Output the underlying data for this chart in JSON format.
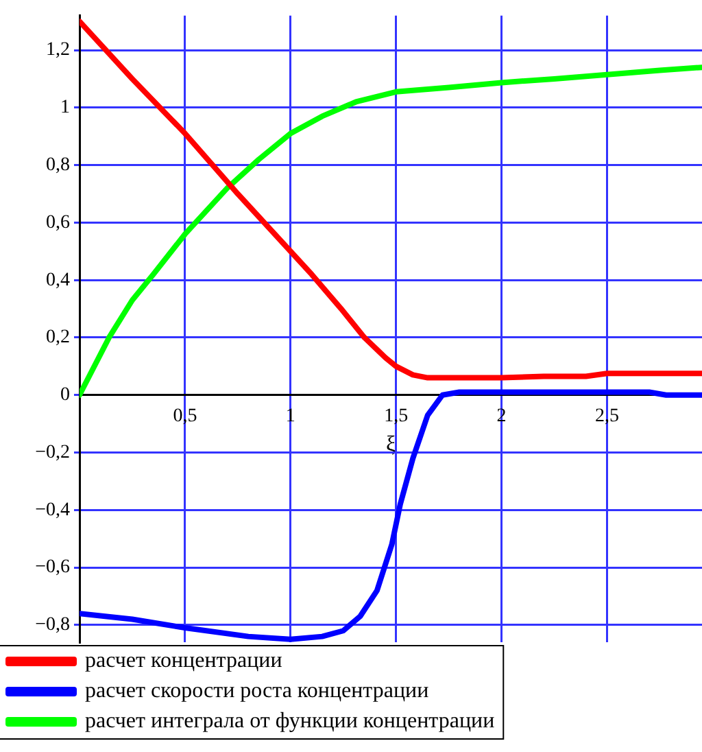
{
  "chart_data": {
    "type": "line",
    "xlabel": "ξ",
    "xlim": [
      0,
      2.95
    ],
    "ylim": [
      -0.86,
      1.32
    ],
    "xticks": [
      {
        "value": 0.5,
        "label": "0,5"
      },
      1,
      {
        "value": 1.5,
        "label": "1,5"
      },
      2,
      {
        "value": 2.5,
        "label": "2,5"
      }
    ],
    "yticks": [
      {
        "value": -0.8,
        "label": "−0,8"
      },
      {
        "value": -0.6,
        "label": "−0,6"
      },
      {
        "value": -0.4,
        "label": "−0,4"
      },
      {
        "value": -0.2,
        "label": "−0,2"
      },
      0,
      {
        "value": 0.2,
        "label": "0,2"
      },
      {
        "value": 0.4,
        "label": "0,4"
      },
      {
        "value": 0.6,
        "label": "0,6"
      },
      {
        "value": 0.8,
        "label": "0,8"
      },
      1,
      {
        "value": 1.2,
        "label": "1,2"
      }
    ],
    "grid": true,
    "legend": "bottom",
    "marker": "none",
    "line_style": "solid",
    "series": [
      {
        "name": "расчет концентрации",
        "color": "#ff0000",
        "x": [
          0,
          0.25,
          0.5,
          0.75,
          1,
          1.1,
          1.24,
          1.35,
          1.45,
          1.5,
          1.58,
          1.65,
          1.8,
          2,
          2.2,
          2.4,
          2.5,
          2.7,
          2.95
        ],
        "values": [
          1.3,
          1.1,
          0.91,
          0.7,
          0.5,
          0.42,
          0.3,
          0.2,
          0.13,
          0.1,
          0.07,
          0.06,
          0.06,
          0.06,
          0.065,
          0.065,
          0.075,
          0.075,
          0.075
        ]
      },
      {
        "name": "расчет скорости роста концентрации",
        "color": "#0000ff",
        "x": [
          0,
          0.25,
          0.5,
          0.8,
          1,
          1.15,
          1.25,
          1.33,
          1.41,
          1.48,
          1.52,
          1.58,
          1.65,
          1.72,
          1.8,
          2.2,
          2.7,
          2.78,
          2.95
        ],
        "values": [
          -0.76,
          -0.78,
          -0.81,
          -0.84,
          -0.85,
          -0.84,
          -0.82,
          -0.77,
          -0.68,
          -0.52,
          -0.38,
          -0.22,
          -0.07,
          0,
          0.01,
          0.01,
          0.01,
          0,
          0
        ]
      },
      {
        "name": "расчет интеграла от функции концентрации",
        "color": "#00ff00",
        "x": [
          0,
          0.14,
          0.25,
          0.35,
          0.5,
          0.7,
          0.85,
          1,
          1.15,
          1.31,
          1.5,
          1.75,
          2,
          2.25,
          2.5,
          2.75,
          2.95
        ],
        "values": [
          0,
          0.2,
          0.33,
          0.42,
          0.56,
          0.72,
          0.82,
          0.91,
          0.97,
          1.02,
          1.055,
          1.07,
          1.087,
          1.1,
          1.115,
          1.13,
          1.14
        ]
      }
    ]
  }
}
